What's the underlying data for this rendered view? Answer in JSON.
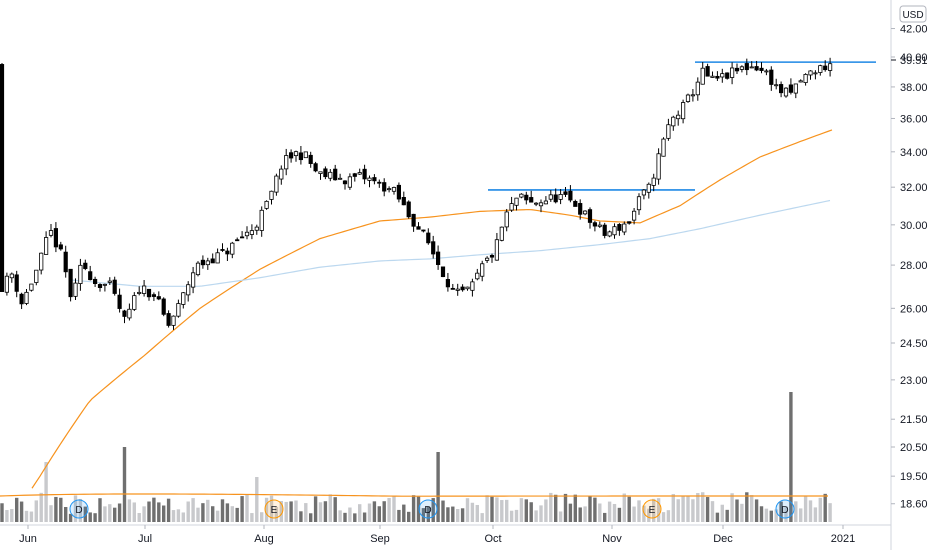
{
  "chart_data": {
    "type": "candlestick",
    "currency": "USD",
    "last_price": "39.51",
    "y_axis": {
      "ticks": [
        "42.00",
        "40.00",
        "38.00",
        "36.00",
        "34.00",
        "32.00",
        "30.00",
        "28.00",
        "26.00",
        "24.50",
        "23.00",
        "21.50",
        "20.50",
        "19.50",
        "18.60"
      ],
      "scale": "log",
      "range": [
        17.9,
        42.2
      ]
    },
    "x_axis": {
      "ticks": [
        "Jun",
        "Jul",
        "Aug",
        "Sep",
        "Oct",
        "Nov",
        "Dec",
        "2021"
      ]
    },
    "price_range": [
      16.8,
      40.1
    ],
    "resistance_lines": [
      {
        "level": 31.85,
        "from_month": "Oct",
        "to_month": "Nov"
      },
      {
        "level": 39.65,
        "from_month": "Nov",
        "to_month": "Dec"
      }
    ],
    "series": [
      {
        "type": "moving_average",
        "color": "#f7931e"
      },
      {
        "type": "moving_average",
        "color": "#bcd8ef"
      }
    ],
    "event_markers": [
      {
        "label": "D"
      },
      {
        "label": "E"
      },
      {
        "label": "D"
      },
      {
        "label": "E"
      },
      {
        "label": "D"
      },
      {
        "label": "D"
      }
    ],
    "volume": {
      "color_up": "#c8c9cc",
      "color_down": "#6f6f6f",
      "avg_line_color": "#f7931e"
    }
  },
  "colors": {
    "up_candle_fill": "#ffffff",
    "down_candle_fill": "#000000",
    "wick": "#000000",
    "resistance": "#1e88e5",
    "grid": "#eeeeee",
    "axis_line": "#d1d4dc"
  }
}
